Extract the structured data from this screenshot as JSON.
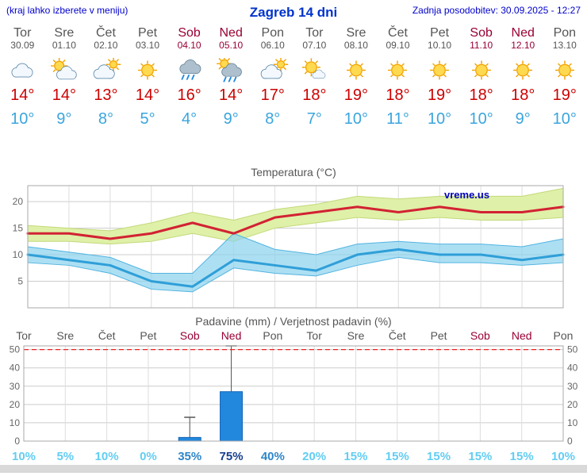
{
  "header": {
    "hint": "(kraj lahko izberete v meniju)",
    "title": "Zagreb 14 dni",
    "updated": "Zadnja posodobitev: 30.09.2025 - 12:27"
  },
  "colors": {
    "link_blue": "#0000cc",
    "weekday_text": "#555555",
    "weekend_text": "#990033",
    "tmax_text": "#cc0000",
    "tmin_text": "#3aa5dd",
    "bar_fill": "#2288dd",
    "prob_low": "#62cdf2",
    "prob_mid": "#2e86c8",
    "prob_high": "#173f8f",
    "watermark_blue": "#0000bb"
  },
  "days": [
    {
      "name": "Tor",
      "date": "30.09",
      "weekend": false,
      "icon": "cloudy",
      "tmax": "14°",
      "tmin": "10°"
    },
    {
      "name": "Sre",
      "date": "01.10",
      "weekend": false,
      "icon": "partly",
      "tmax": "14°",
      "tmin": "9°"
    },
    {
      "name": "Čet",
      "date": "02.10",
      "weekend": false,
      "icon": "mostly-cloudy",
      "tmax": "13°",
      "tmin": "8°"
    },
    {
      "name": "Pet",
      "date": "03.10",
      "weekend": false,
      "icon": "sunny",
      "tmax": "14°",
      "tmin": "5°"
    },
    {
      "name": "Sob",
      "date": "04.10",
      "weekend": true,
      "icon": "rain",
      "tmax": "16°",
      "tmin": "4°"
    },
    {
      "name": "Ned",
      "date": "05.10",
      "weekend": true,
      "icon": "shower",
      "tmax": "14°",
      "tmin": "9°"
    },
    {
      "name": "Pon",
      "date": "06.10",
      "weekend": false,
      "icon": "mostly-cloudy",
      "tmax": "17°",
      "tmin": "8°"
    },
    {
      "name": "Tor",
      "date": "07.10",
      "weekend": false,
      "icon": "mostly-sunny",
      "tmax": "18°",
      "tmin": "7°"
    },
    {
      "name": "Sre",
      "date": "08.10",
      "weekend": false,
      "icon": "sunny",
      "tmax": "19°",
      "tmin": "10°"
    },
    {
      "name": "Čet",
      "date": "09.10",
      "weekend": false,
      "icon": "sunny",
      "tmax": "18°",
      "tmin": "11°"
    },
    {
      "name": "Pet",
      "date": "10.10",
      "weekend": false,
      "icon": "sunny",
      "tmax": "19°",
      "tmin": "10°"
    },
    {
      "name": "Sob",
      "date": "11.10",
      "weekend": true,
      "icon": "sunny",
      "tmax": "18°",
      "tmin": "10°"
    },
    {
      "name": "Ned",
      "date": "12.10",
      "weekend": true,
      "icon": "sunny",
      "tmax": "18°",
      "tmin": "9°"
    },
    {
      "name": "Pon",
      "date": "13.10",
      "weekend": false,
      "icon": "sunny",
      "tmax": "19°",
      "tmin": "10°"
    }
  ],
  "chart_data": [
    {
      "type": "line",
      "title": "Temperatura (°C)",
      "n": 14,
      "x_labels": [
        "Tor 30.09",
        "Sre 01.10",
        "Čet 02.10",
        "Pet 03.10",
        "Sob 04.10",
        "Ned 05.10",
        "Pon 06.10",
        "Tor 07.10",
        "Sre 08.10",
        "Čet 09.10",
        "Pet 10.10",
        "Sob 11.10",
        "Ned 12.10",
        "Pon 13.10"
      ],
      "series": [
        {
          "name": "max-temperature",
          "color": "#d22233",
          "values": [
            14,
            14,
            13,
            14,
            16,
            14,
            17,
            18,
            19,
            18,
            19,
            18,
            18,
            19
          ]
        },
        {
          "name": "min-temperature",
          "color": "#2f9fd8",
          "values": [
            10,
            9,
            8,
            5,
            4,
            9,
            8,
            7,
            10,
            11,
            10,
            10,
            9,
            10
          ]
        }
      ],
      "bands": [
        {
          "name": "max-range",
          "fill": "#dff0a8",
          "edge": "#c3d97a",
          "opacity": 1,
          "upper": [
            15.5,
            15,
            14.5,
            16,
            18,
            16.5,
            18.5,
            19.5,
            21,
            20.5,
            21,
            21,
            21,
            22.5
          ],
          "lower": [
            12.5,
            12.5,
            12,
            12.5,
            14,
            12.5,
            15,
            16,
            17,
            16.5,
            17,
            16.5,
            16.5,
            17
          ]
        },
        {
          "name": "min-range",
          "fill": "#8ed3ef",
          "edge": "#52b4e0",
          "opacity": 0.72,
          "upper": [
            11.5,
            10.5,
            9.5,
            6.5,
            6.5,
            14,
            11,
            10,
            12,
            12.5,
            12,
            12,
            11.5,
            13
          ],
          "lower": [
            8.5,
            8,
            6.5,
            3.5,
            3,
            7.5,
            6.5,
            6,
            8,
            9.5,
            8.5,
            8.5,
            8,
            8.5
          ]
        }
      ],
      "ylim": [
        0,
        23
      ],
      "yticks": [
        5,
        10,
        15,
        20
      ],
      "grid": true,
      "watermark": "vreme.us"
    },
    {
      "type": "bar",
      "title": "Padavine (mm) / Verjetnost padavin (%)",
      "categories": [
        "Tor",
        "Sre",
        "Čet",
        "Pet",
        "Sob",
        "Ned",
        "Pon",
        "Tor",
        "Sre",
        "Čet",
        "Pet",
        "Sob",
        "Ned",
        "Pon"
      ],
      "weekend_columns": [
        4,
        5,
        11,
        12
      ],
      "values_mm": [
        0,
        0,
        0,
        0,
        2,
        27,
        0,
        0,
        0,
        0,
        0,
        0,
        0,
        0
      ],
      "whisker_high": [
        0,
        0,
        0,
        0,
        13,
        52,
        0,
        0,
        0,
        0,
        0,
        0,
        0,
        0
      ],
      "probabilities": [
        "10%",
        "5%",
        "10%",
        "0%",
        "35%",
        "75%",
        "40%",
        "20%",
        "15%",
        "15%",
        "15%",
        "15%",
        "15%",
        "10%"
      ],
      "ylim": [
        0,
        52
      ],
      "yticks": [
        0,
        10,
        20,
        30,
        40,
        50
      ],
      "limit_line": 50,
      "grid": true,
      "bar_color": "#2288dd"
    }
  ]
}
